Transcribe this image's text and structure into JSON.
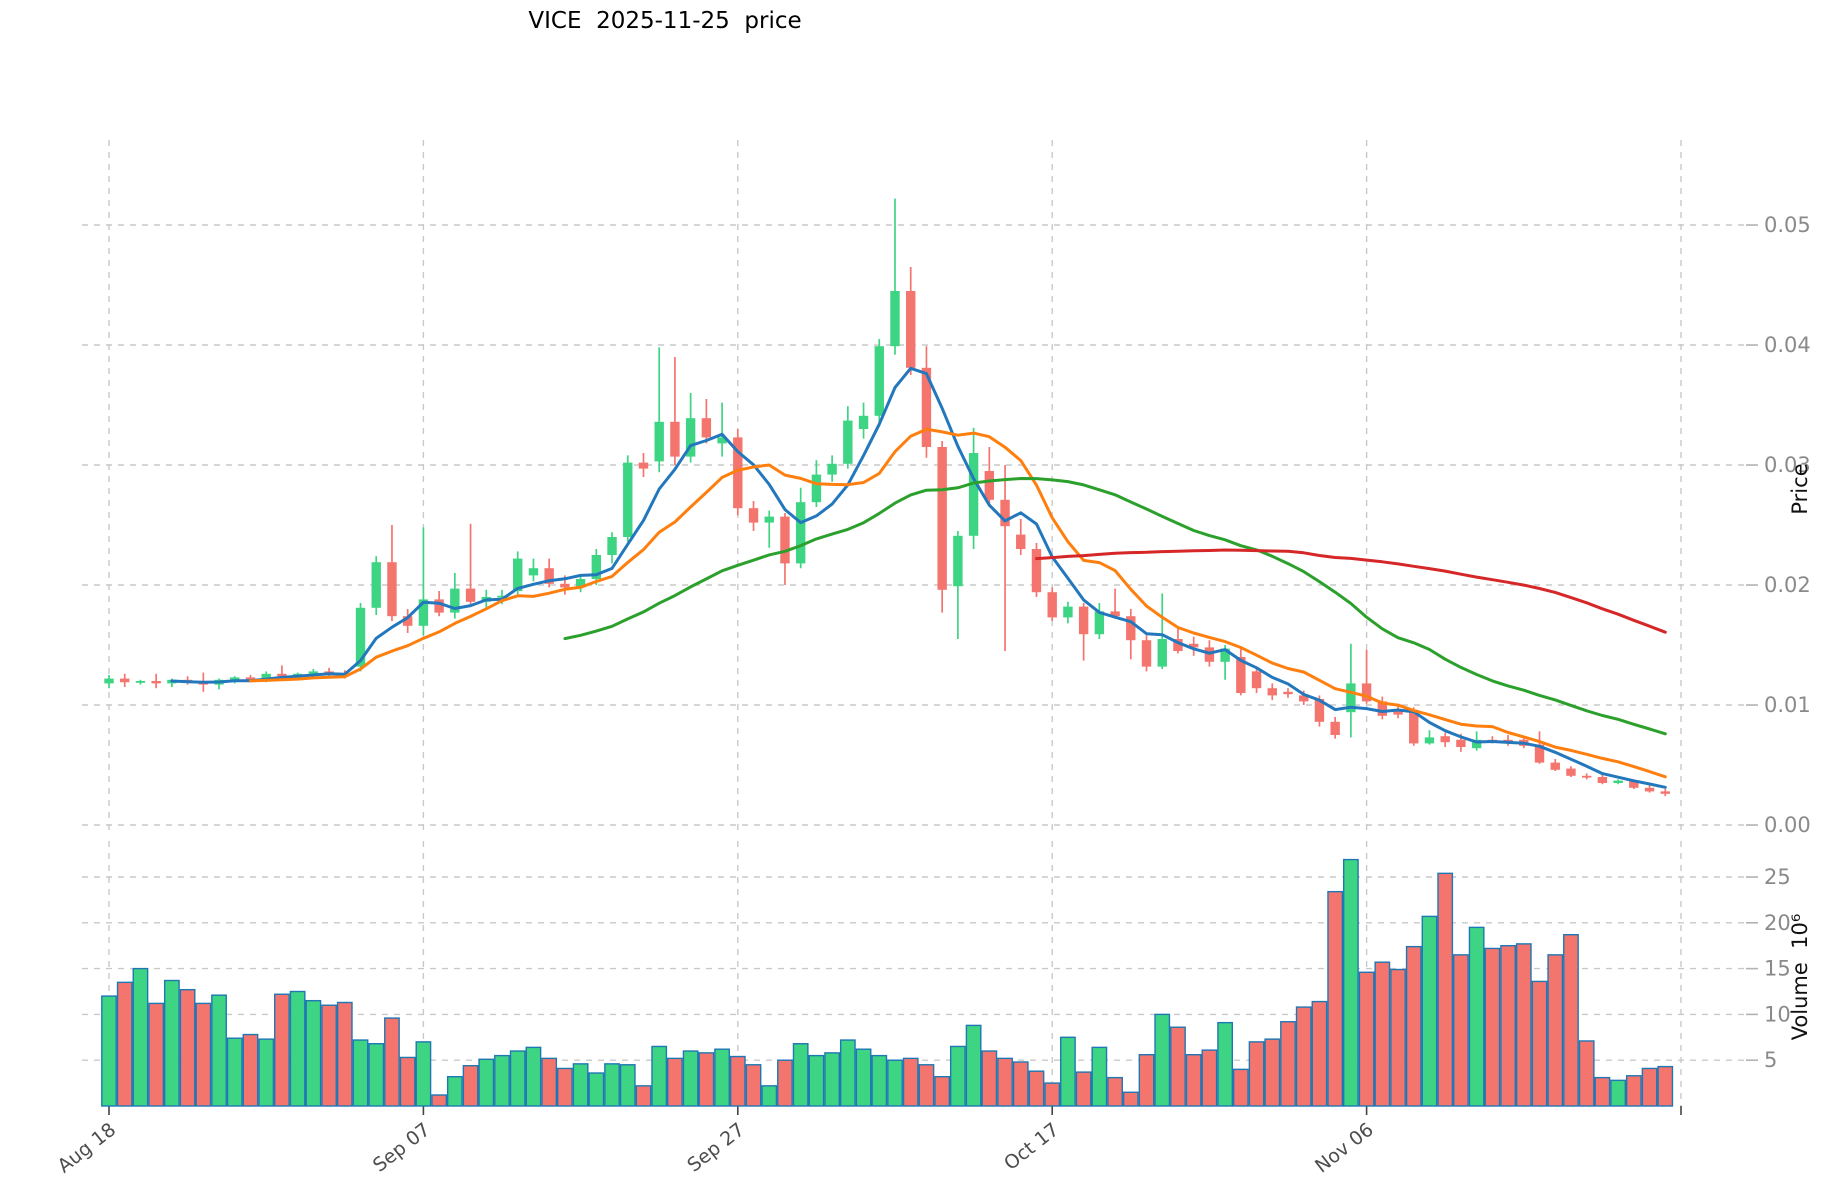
{
  "title": "VICE  2025-11-25  price",
  "price_axis": {
    "label": "Price",
    "tick_labels": [
      "0.00",
      "0.01",
      "0.02",
      "0.03",
      "0.04",
      "0.05"
    ],
    "tick_values": [
      0.0,
      0.01,
      0.02,
      0.03,
      0.04,
      0.05
    ]
  },
  "volume_axis": {
    "label": "Volume  10⁶",
    "tick_labels": [
      "5",
      "10",
      "15",
      "20",
      "25"
    ],
    "tick_values": [
      5,
      10,
      15,
      20,
      25
    ]
  },
  "x_axis": {
    "tick_labels": [
      "Aug 18",
      "Sep 07",
      "Sep 27",
      "Oct 17",
      "Nov 06"
    ],
    "tick_day_indices": [
      0,
      20,
      40,
      60,
      80
    ],
    "unlabeled_gridline_day_index": 100
  },
  "chart_data": {
    "type": "candlestick",
    "title": "VICE  2025-11-25  price",
    "start_date": "2025-08-18",
    "end_date": "2025-11-25",
    "x_unit": "day index, 0 = Aug 18 2025, daily candles",
    "price_ylim": [
      -0.001,
      0.0572
    ],
    "volume_ylim_millions": [
      0,
      28
    ],
    "grid": true,
    "legend": false,
    "up_color": "#3dd583",
    "down_color": "#f4746e",
    "volume_edge_color": "#1f77b4",
    "grid_color": "#c9c9c9",
    "moving_averages": [
      {
        "name": "SMA5",
        "window": 5,
        "color": "#2277bd"
      },
      {
        "name": "SMA10",
        "window": 10,
        "color": "#ff7f0e"
      },
      {
        "name": "SMA30",
        "window": 30,
        "color": "#2ca02c"
      },
      {
        "name": "SMA60",
        "window": 60,
        "color": "#d62728"
      }
    ],
    "candles_format": [
      "open",
      "high",
      "low",
      "close",
      "volume_millions"
    ],
    "candles": [
      [
        0.0118,
        0.0125,
        0.0114,
        0.0122,
        12.0
      ],
      [
        0.0122,
        0.0126,
        0.0115,
        0.0119,
        13.5
      ],
      [
        0.0119,
        0.0121,
        0.0117,
        0.012,
        15.0
      ],
      [
        0.012,
        0.0126,
        0.0114,
        0.0118,
        11.2
      ],
      [
        0.0118,
        0.0122,
        0.0115,
        0.0121,
        13.7
      ],
      [
        0.0121,
        0.0124,
        0.0117,
        0.0119,
        12.7
      ],
      [
        0.0119,
        0.0127,
        0.0111,
        0.0117,
        11.2
      ],
      [
        0.0117,
        0.0122,
        0.0113,
        0.0121,
        12.1
      ],
      [
        0.0121,
        0.0124,
        0.0118,
        0.0123,
        7.4
      ],
      [
        0.0123,
        0.0125,
        0.0119,
        0.0121,
        7.8
      ],
      [
        0.0121,
        0.0128,
        0.0119,
        0.0126,
        7.3
      ],
      [
        0.0126,
        0.0133,
        0.0122,
        0.0124,
        12.2
      ],
      [
        0.0124,
        0.0127,
        0.0121,
        0.0126,
        12.5
      ],
      [
        0.0126,
        0.013,
        0.0123,
        0.0128,
        11.5
      ],
      [
        0.0128,
        0.0131,
        0.0124,
        0.0126,
        11.0
      ],
      [
        0.0126,
        0.0129,
        0.0122,
        0.0124,
        11.3
      ],
      [
        0.0132,
        0.0185,
        0.0128,
        0.0181,
        7.2
      ],
      [
        0.0181,
        0.0224,
        0.0175,
        0.0219,
        6.8
      ],
      [
        0.0219,
        0.025,
        0.017,
        0.0174,
        9.6
      ],
      [
        0.0174,
        0.018,
        0.016,
        0.0166,
        5.3
      ],
      [
        0.0166,
        0.0248,
        0.0158,
        0.0188,
        7.0
      ],
      [
        0.0188,
        0.0195,
        0.0174,
        0.0177,
        1.2
      ],
      [
        0.0177,
        0.021,
        0.0172,
        0.0197,
        3.2
      ],
      [
        0.0197,
        0.0251,
        0.0184,
        0.0186,
        4.4
      ],
      [
        0.0186,
        0.0196,
        0.018,
        0.019,
        5.1
      ],
      [
        0.019,
        0.0196,
        0.0184,
        0.0191,
        5.5
      ],
      [
        0.0195,
        0.0228,
        0.0192,
        0.0222,
        6.0
      ],
      [
        0.0208,
        0.0222,
        0.0203,
        0.0214,
        6.4
      ],
      [
        0.0214,
        0.0222,
        0.0198,
        0.0201,
        5.2
      ],
      [
        0.0201,
        0.0208,
        0.0192,
        0.0198,
        4.1
      ],
      [
        0.0198,
        0.0208,
        0.0194,
        0.0205,
        4.6
      ],
      [
        0.0205,
        0.023,
        0.02,
        0.0225,
        3.6
      ],
      [
        0.0225,
        0.0244,
        0.0218,
        0.024,
        4.6
      ],
      [
        0.024,
        0.0308,
        0.0236,
        0.0302,
        4.5
      ],
      [
        0.0302,
        0.031,
        0.029,
        0.0297,
        2.2
      ],
      [
        0.0303,
        0.0398,
        0.0294,
        0.0336,
        6.5
      ],
      [
        0.0336,
        0.039,
        0.03,
        0.0307,
        5.2
      ],
      [
        0.0307,
        0.036,
        0.0302,
        0.0339,
        6.0
      ],
      [
        0.0339,
        0.0355,
        0.0318,
        0.0323,
        5.8
      ],
      [
        0.0318,
        0.0352,
        0.0307,
        0.0323,
        6.2
      ],
      [
        0.0323,
        0.033,
        0.0258,
        0.0264,
        5.4
      ],
      [
        0.0264,
        0.027,
        0.0245,
        0.0252,
        4.5
      ],
      [
        0.0252,
        0.0262,
        0.0231,
        0.0257,
        2.2
      ],
      [
        0.0257,
        0.026,
        0.02,
        0.0218,
        5.0
      ],
      [
        0.0218,
        0.0281,
        0.0214,
        0.0269,
        6.8
      ],
      [
        0.0269,
        0.0304,
        0.0265,
        0.0292,
        5.5
      ],
      [
        0.0292,
        0.0308,
        0.0286,
        0.0301,
        5.8
      ],
      [
        0.0301,
        0.0349,
        0.0297,
        0.0337,
        7.2
      ],
      [
        0.033,
        0.0352,
        0.0322,
        0.0341,
        6.2
      ],
      [
        0.0341,
        0.0405,
        0.0335,
        0.0399,
        5.5
      ],
      [
        0.0399,
        0.0522,
        0.0392,
        0.0445,
        5.0
      ],
      [
        0.0445,
        0.0465,
        0.0375,
        0.0381,
        5.2
      ],
      [
        0.0381,
        0.0399,
        0.0306,
        0.0315,
        4.5
      ],
      [
        0.0315,
        0.032,
        0.0177,
        0.0196,
        3.2
      ],
      [
        0.0199,
        0.0245,
        0.0155,
        0.0241,
        6.5
      ],
      [
        0.0241,
        0.0331,
        0.023,
        0.031,
        8.8
      ],
      [
        0.0295,
        0.0315,
        0.0265,
        0.0271,
        6.0
      ],
      [
        0.0271,
        0.03,
        0.0145,
        0.0249,
        5.2
      ],
      [
        0.0242,
        0.0255,
        0.0225,
        0.023,
        4.8
      ],
      [
        0.023,
        0.0235,
        0.019,
        0.0194,
        3.8
      ],
      [
        0.0194,
        0.0198,
        0.017,
        0.0173,
        2.5
      ],
      [
        0.0173,
        0.0186,
        0.0168,
        0.0182,
        7.5
      ],
      [
        0.0182,
        0.0185,
        0.0137,
        0.0159,
        3.7
      ],
      [
        0.0159,
        0.0185,
        0.0155,
        0.0178,
        6.4
      ],
      [
        0.0178,
        0.0197,
        0.0172,
        0.0174,
        3.1
      ],
      [
        0.0174,
        0.018,
        0.0138,
        0.0154,
        1.5
      ],
      [
        0.0154,
        0.0158,
        0.0128,
        0.0132,
        5.6
      ],
      [
        0.0132,
        0.0193,
        0.013,
        0.0155,
        10.0
      ],
      [
        0.0155,
        0.0165,
        0.0143,
        0.0145,
        8.6
      ],
      [
        0.0151,
        0.0157,
        0.0141,
        0.0148,
        5.6
      ],
      [
        0.0148,
        0.0154,
        0.0132,
        0.0136,
        6.1
      ],
      [
        0.0136,
        0.015,
        0.0121,
        0.0147,
        9.1
      ],
      [
        0.014,
        0.0148,
        0.0108,
        0.011,
        4.0
      ],
      [
        0.0128,
        0.0131,
        0.011,
        0.0114,
        7.0
      ],
      [
        0.0114,
        0.0118,
        0.0104,
        0.0108,
        7.3
      ],
      [
        0.0111,
        0.0114,
        0.0106,
        0.0109,
        9.2
      ],
      [
        0.0108,
        0.0112,
        0.01,
        0.0103,
        10.8
      ],
      [
        0.0105,
        0.0108,
        0.0082,
        0.0086,
        11.4
      ],
      [
        0.0086,
        0.009,
        0.0072,
        0.0075,
        23.4
      ],
      [
        0.0094,
        0.0151,
        0.0073,
        0.0118,
        26.9
      ],
      [
        0.0118,
        0.0146,
        0.0101,
        0.0103,
        14.6
      ],
      [
        0.0103,
        0.0107,
        0.0088,
        0.0091,
        15.7
      ],
      [
        0.0096,
        0.0101,
        0.0089,
        0.0092,
        14.9
      ],
      [
        0.0096,
        0.0098,
        0.0066,
        0.0068,
        17.4
      ],
      [
        0.0068,
        0.0079,
        0.0067,
        0.0073,
        20.7
      ],
      [
        0.0074,
        0.0077,
        0.0065,
        0.0069,
        25.4
      ],
      [
        0.0071,
        0.0076,
        0.0061,
        0.0065,
        16.5
      ],
      [
        0.0064,
        0.0078,
        0.0062,
        0.0071,
        19.5
      ],
      [
        0.0071,
        0.0074,
        0.0068,
        0.007,
        17.2
      ],
      [
        0.0071,
        0.0075,
        0.0066,
        0.0069,
        17.5
      ],
      [
        0.0071,
        0.0074,
        0.0064,
        0.0066,
        17.7
      ],
      [
        0.0067,
        0.0078,
        0.0051,
        0.0052,
        13.6
      ],
      [
        0.0052,
        0.0055,
        0.0045,
        0.0046,
        16.5
      ],
      [
        0.0047,
        0.0049,
        0.004,
        0.0041,
        18.7
      ],
      [
        0.0041,
        0.0043,
        0.0038,
        0.004,
        7.1
      ],
      [
        0.004,
        0.0042,
        0.0034,
        0.0035,
        3.1
      ],
      [
        0.0035,
        0.0038,
        0.0034,
        0.0037,
        2.8
      ],
      [
        0.0037,
        0.0038,
        0.003,
        0.0031,
        3.3
      ],
      [
        0.0031,
        0.0033,
        0.0027,
        0.0028,
        4.1
      ],
      [
        0.0028,
        0.003,
        0.0024,
        0.0026,
        4.3
      ]
    ]
  }
}
